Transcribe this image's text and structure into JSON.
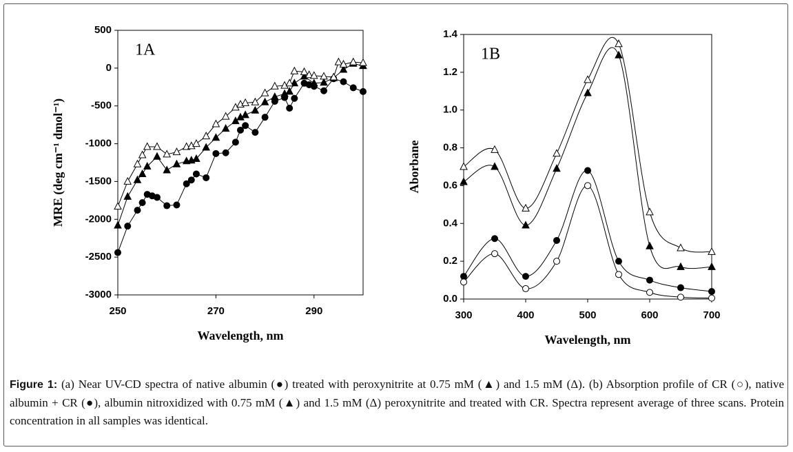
{
  "chart_data": [
    {
      "type": "line",
      "annotation": "1A",
      "xlabel": "Wavelength, nm",
      "ylabel": "MRE (deg cm⁻¹ dmol⁻¹)",
      "xlim": [
        250,
        300
      ],
      "xticks": [
        250,
        270,
        290
      ],
      "ylim": [
        -3000,
        500
      ],
      "yticks": [
        -3000,
        -2500,
        -2000,
        -1500,
        -1000,
        -500,
        0,
        500
      ],
      "smooth": false,
      "grid": false,
      "series": [
        {
          "marker": "circle",
          "filled": true,
          "color": "#000000",
          "x": [
            250,
            252,
            254,
            255,
            256,
            257,
            258,
            260,
            262,
            264,
            265,
            266,
            268,
            270,
            272,
            274,
            275,
            276,
            278,
            280,
            282,
            284,
            285,
            286,
            288,
            289,
            290,
            292,
            294,
            296,
            298,
            300
          ],
          "values": [
            -2440,
            -2090,
            -1880,
            -1780,
            -1670,
            -1690,
            -1710,
            -1820,
            -1810,
            -1530,
            -1480,
            -1400,
            -1450,
            -1130,
            -1120,
            -980,
            -820,
            -760,
            -850,
            -650,
            -440,
            -390,
            -530,
            -400,
            -200,
            -220,
            -240,
            -300,
            -140,
            -180,
            -260,
            -310
          ]
        },
        {
          "marker": "triangle",
          "filled": true,
          "color": "#000000",
          "x": [
            250,
            252,
            254,
            255,
            256,
            258,
            260,
            262,
            264,
            265,
            266,
            268,
            270,
            272,
            274,
            275,
            276,
            278,
            280,
            282,
            284,
            285,
            286,
            288,
            290,
            292,
            294,
            296,
            298,
            300
          ],
          "values": [
            -2080,
            -1700,
            -1480,
            -1400,
            -1300,
            -1170,
            -1350,
            -1270,
            -1230,
            -1220,
            -1200,
            -1050,
            -920,
            -800,
            -700,
            -650,
            -620,
            -560,
            -450,
            -380,
            -340,
            -310,
            -200,
            -110,
            -200,
            -190,
            -130,
            -20,
            60,
            30
          ]
        },
        {
          "marker": "triangle",
          "filled": false,
          "color": "#000000",
          "x": [
            250,
            252,
            254,
            255,
            256,
            258,
            260,
            262,
            264,
            265,
            266,
            268,
            270,
            272,
            274,
            275,
            276,
            278,
            280,
            282,
            284,
            285,
            286,
            288,
            289,
            290,
            292,
            294,
            295,
            296,
            298,
            300
          ],
          "values": [
            -1830,
            -1500,
            -1270,
            -1150,
            -1040,
            -1040,
            -1140,
            -1110,
            -1040,
            -1030,
            -1000,
            -900,
            -740,
            -640,
            -520,
            -480,
            -460,
            -450,
            -330,
            -240,
            -230,
            -200,
            -40,
            -50,
            -90,
            -100,
            -110,
            -120,
            80,
            50,
            80,
            70
          ]
        }
      ]
    },
    {
      "type": "line",
      "annotation": "1B",
      "xlabel": "Wavelength, nm",
      "ylabel": "Aborbane",
      "xlim": [
        300,
        700
      ],
      "xticks": [
        300,
        400,
        500,
        600,
        700
      ],
      "ylim": [
        0,
        1.4
      ],
      "yticks": [
        {
          "value": 0,
          "label": "0.0"
        },
        0.2,
        0.4,
        0.6,
        0.8,
        {
          "value": 1,
          "label": "1.0"
        },
        1.2,
        1.4
      ],
      "smooth": true,
      "grid": false,
      "x": [
        300,
        350,
        400,
        450,
        500,
        550,
        600,
        650,
        700
      ],
      "series": [
        {
          "marker": "triangle",
          "filled": false,
          "color": "#000000",
          "values": [
            0.7,
            0.79,
            0.48,
            0.77,
            1.16,
            1.35,
            0.46,
            0.27,
            0.25
          ]
        },
        {
          "marker": "triangle",
          "filled": true,
          "color": "#000000",
          "values": [
            0.62,
            0.7,
            0.39,
            0.69,
            1.09,
            1.29,
            0.28,
            0.17,
            0.17
          ]
        },
        {
          "marker": "circle",
          "filled": true,
          "color": "#000000",
          "values": [
            0.12,
            0.32,
            0.12,
            0.31,
            0.68,
            0.2,
            0.1,
            0.06,
            0.04
          ]
        },
        {
          "marker": "circle",
          "filled": false,
          "color": "#000000",
          "values": [
            0.09,
            0.24,
            0.055,
            0.2,
            0.6,
            0.13,
            0.035,
            0.01,
            0.005
          ]
        }
      ]
    }
  ],
  "caption": {
    "label": "Figure 1:",
    "text": "(a) Near UV-CD spectra of native albumin (●) treated with peroxynitrite at 0.75 mM (▲) and 1.5 mM (Δ). (b) Absorption profile of CR (○), native albumin + CR (●), albumin nitroxidized with 0.75 mM (▲) and 1.5 mM (Δ) peroxynitrite and treated with CR. Spectra represent average of three scans. Protein concentration in all samples was identical."
  }
}
